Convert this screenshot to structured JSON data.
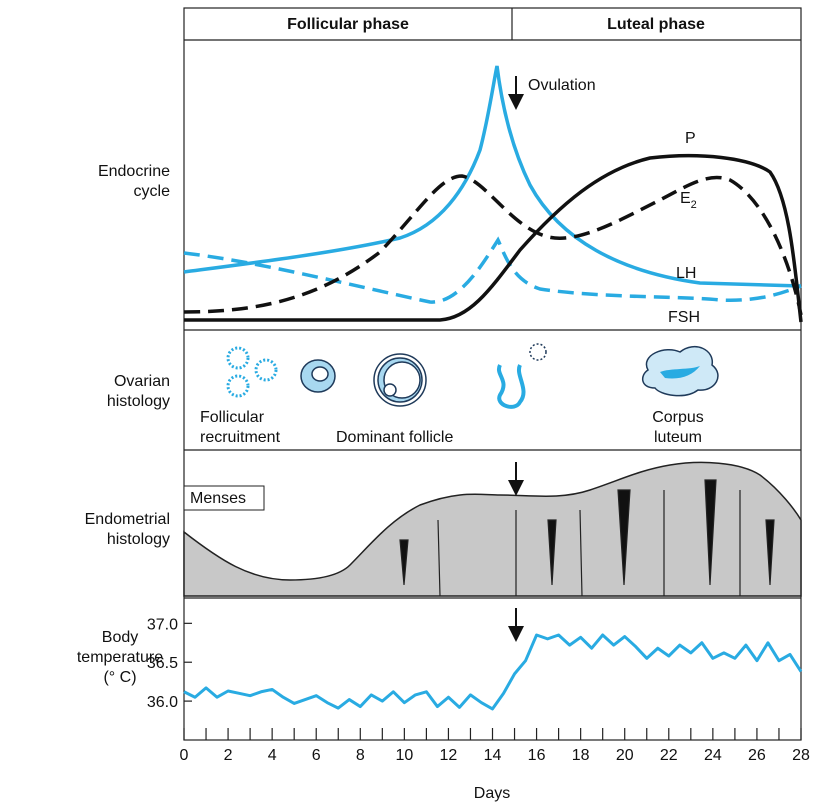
{
  "header": {
    "phases": [
      "Follicular phase",
      "Luteal phase"
    ]
  },
  "panels": {
    "endocrine": [
      "Endocrine",
      "cycle"
    ],
    "ovarian": [
      "Ovarian",
      "histology"
    ],
    "endometrial": [
      "Endometrial",
      "histology"
    ]
  },
  "endocrine": {
    "ovulation": "Ovulation",
    "P": "P",
    "E2": [
      "E",
      "2"
    ],
    "LH": "LH",
    "FSH": "FSH"
  },
  "ovarian": {
    "recruitment": [
      "Follicular",
      "recruitment"
    ],
    "dominant": "Dominant follicle",
    "corpus": [
      "Corpus",
      "luteum"
    ]
  },
  "endometrial": {
    "menses": "Menses"
  },
  "chart_data": {
    "type": "line",
    "ylabel": [
      "Body",
      "temperature",
      "(° C)"
    ],
    "xlabel": "Days",
    "color": "#29abe2",
    "x": [
      0,
      0.5,
      1,
      1.5,
      2,
      2.5,
      3,
      3.5,
      4,
      4.5,
      5,
      5.5,
      6,
      6.5,
      7,
      7.5,
      8,
      8.5,
      9,
      9.5,
      10,
      10.5,
      11,
      11.5,
      12,
      12.5,
      13,
      13.5,
      14,
      14.5,
      15,
      15.5,
      16,
      16.5,
      17,
      17.5,
      18,
      18.5,
      19,
      19.5,
      20,
      20.5,
      21,
      21.5,
      22,
      22.5,
      23,
      23.5,
      24,
      24.5,
      25,
      25.5,
      26,
      26.5,
      27,
      27.5,
      28
    ],
    "values": [
      36.12,
      36.05,
      36.17,
      36.05,
      36.13,
      36.1,
      36.07,
      36.12,
      36.15,
      36.05,
      35.97,
      36.02,
      36.07,
      35.98,
      35.91,
      36.02,
      35.93,
      36.08,
      36.0,
      36.12,
      35.98,
      36.08,
      36.12,
      35.93,
      36.05,
      35.92,
      36.08,
      35.98,
      35.9,
      36.1,
      36.35,
      36.52,
      36.85,
      36.8,
      36.85,
      36.72,
      36.82,
      36.68,
      36.85,
      36.72,
      36.83,
      36.7,
      36.55,
      36.68,
      36.58,
      36.72,
      36.62,
      36.75,
      36.55,
      36.62,
      36.55,
      36.72,
      36.52,
      36.75,
      36.52,
      36.6,
      36.38
    ],
    "xlim": [
      0,
      28
    ],
    "ylim": [
      35.5,
      37.3
    ],
    "xticks": [
      0,
      2,
      4,
      6,
      8,
      10,
      12,
      14,
      16,
      18,
      20,
      22,
      24,
      26,
      28
    ],
    "xminorticks": [
      1,
      3,
      5,
      7,
      9,
      11,
      13,
      15,
      17,
      19,
      21,
      23,
      25,
      27
    ],
    "yticks": [
      {
        "value": 36,
        "label": "36.0"
      },
      36.5,
      {
        "value": 37,
        "label": "37.0"
      }
    ]
  }
}
